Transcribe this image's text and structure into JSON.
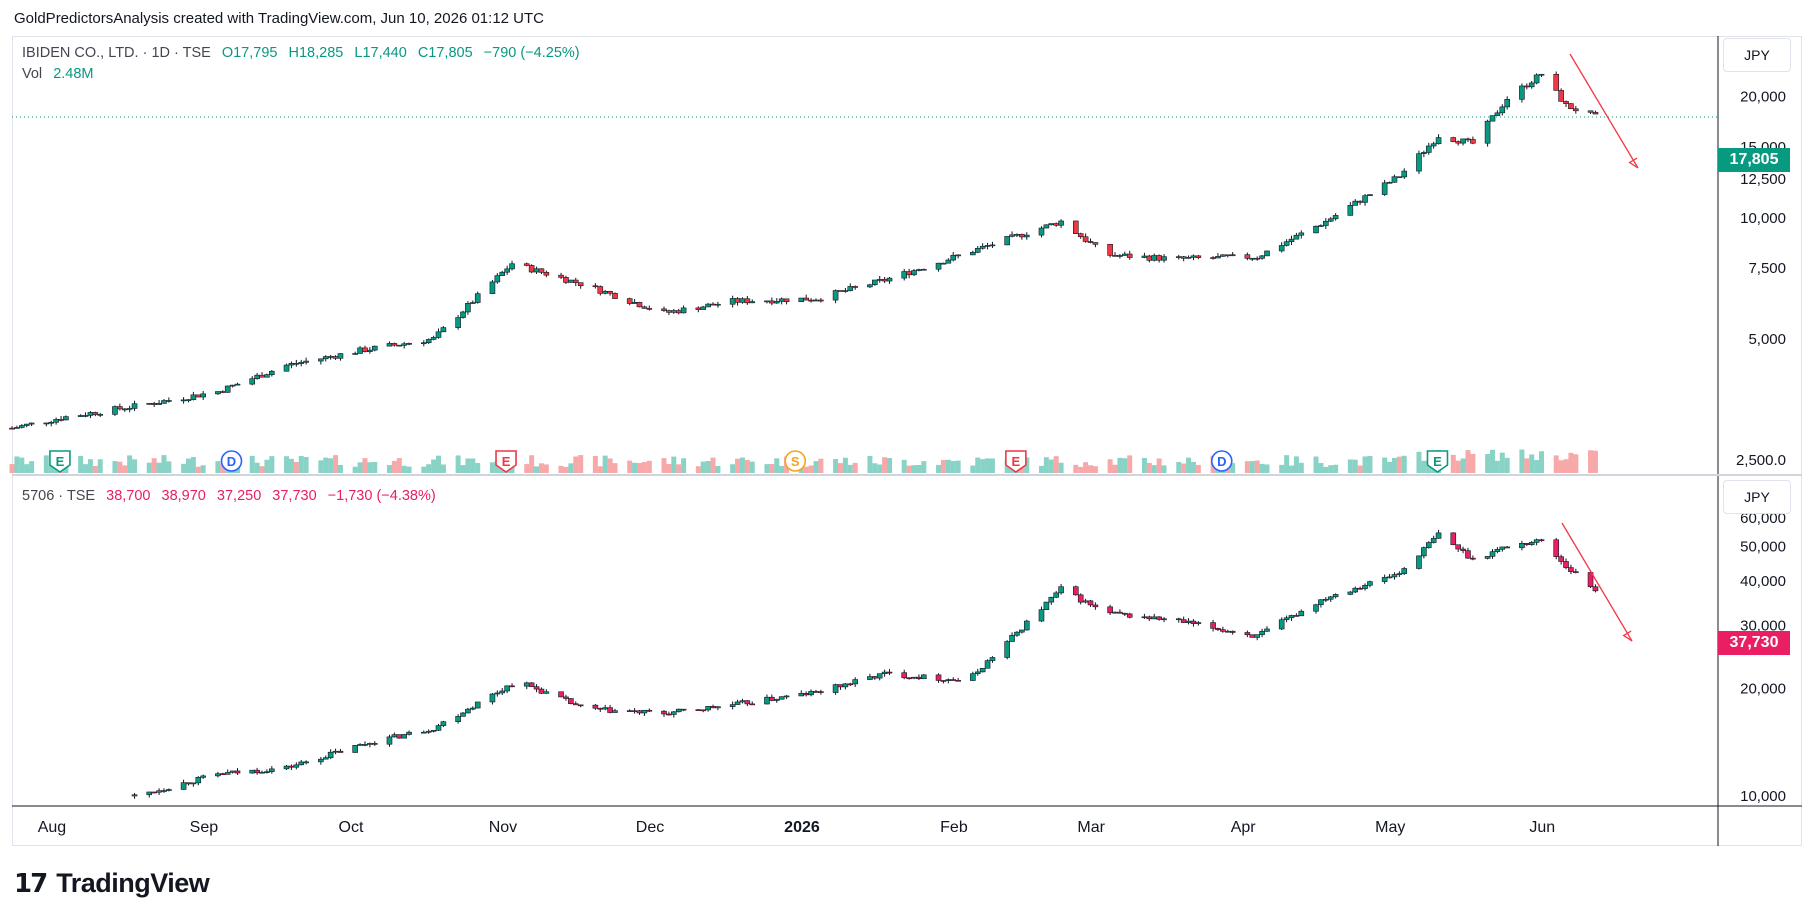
{
  "caption": "GoldPredictorsAnalysis created with TradingView.com, Jun 10, 2026 01:12 UTC",
  "brand": "TradingView",
  "colors": {
    "up": "#089981",
    "down": "#f23645",
    "pane2_up": "#089981",
    "pane2_down": "#e91e63",
    "arrow": "#f23645"
  },
  "pane1": {
    "symbol": "IBIDEN CO., LTD. · 1D · TSE",
    "ohlc": {
      "open": "O17,795",
      "high": "H18,285",
      "low": "L17,440",
      "close": "C17,805",
      "change": "−790 (−4.25%)"
    },
    "volume_label": "Vol",
    "volume_value": "2.48M",
    "currency": "JPY",
    "last_price": "17,805",
    "y_ticks": [
      "2,500.0",
      "5,000",
      "7,500",
      "10,000",
      "12,500",
      "15,000",
      "20,000"
    ],
    "events": [
      {
        "icon": "E",
        "kind": "earnings-up"
      },
      {
        "icon": "D",
        "kind": "dividend"
      },
      {
        "icon": "E",
        "kind": "earnings-down"
      },
      {
        "icon": "S",
        "kind": "split"
      },
      {
        "icon": "E",
        "kind": "earnings-down"
      },
      {
        "icon": "D",
        "kind": "dividend"
      },
      {
        "icon": "E",
        "kind": "earnings-up"
      }
    ]
  },
  "pane2": {
    "symbol": "5706 · TSE",
    "ohlc": {
      "open": "38,700",
      "high": "38,970",
      "low": "37,250",
      "close": "37,730",
      "change": "−1,730 (−4.38%)"
    },
    "currency": "JPY",
    "last_price": "37,730",
    "y_ticks": [
      "10,000",
      "20,000",
      "30,000",
      "40,000",
      "50,000",
      "60,000"
    ]
  },
  "x_axis": [
    "Aug",
    "Sep",
    "Oct",
    "Nov",
    "Dec",
    "2026",
    "Feb",
    "Mar",
    "Apr",
    "May",
    "Jun"
  ],
  "chart_data": [
    {
      "type": "line",
      "title": "IBIDEN CO., LTD. · 1D · TSE",
      "x": [
        "2025-07-21",
        "2025-08-01",
        "2025-08-15",
        "2025-09-01",
        "2025-09-15",
        "2025-10-01",
        "2025-10-15",
        "2025-10-31",
        "2025-11-15",
        "2025-12-01",
        "2025-12-15",
        "2026-01-01",
        "2026-01-15",
        "2026-02-01",
        "2026-02-20",
        "2026-03-01",
        "2026-03-15",
        "2026-04-01",
        "2026-04-15",
        "2026-04-30",
        "2026-05-08",
        "2026-05-15",
        "2026-05-22",
        "2026-05-29",
        "2026-06-03",
        "2026-06-09"
      ],
      "series": [
        {
          "values": [
            3000,
            3200,
            3400,
            3700,
            4300,
            4700,
            5000,
            7700,
            6800,
            5800,
            6200,
            6300,
            7000,
            8200,
            9800,
            8100,
            7900,
            8000,
            9800,
            12700,
            16000,
            15300,
            19800,
            22800,
            19000,
            17805
          ]
        }
      ],
      "ylim": [
        2500,
        22000
      ],
      "y_scale": "log",
      "last": 17805
    },
    {
      "type": "line",
      "title": "5706 · TSE",
      "x": [
        "2025-08-15",
        "2025-09-01",
        "2025-09-15",
        "2025-10-01",
        "2025-10-15",
        "2025-11-01",
        "2025-11-15",
        "2025-12-01",
        "2025-12-15",
        "2026-01-01",
        "2026-01-15",
        "2026-02-01",
        "2026-02-20",
        "2026-03-01",
        "2026-03-15",
        "2026-04-01",
        "2026-04-15",
        "2026-04-30",
        "2026-05-08",
        "2026-05-15",
        "2026-05-22",
        "2026-05-29",
        "2026-06-03",
        "2026-06-09"
      ],
      "series": [
        {
          "values": [
            10000,
            11500,
            12000,
            14000,
            15500,
            21000,
            17500,
            17000,
            18000,
            19500,
            22000,
            21000,
            38000,
            32500,
            31000,
            28000,
            36000,
            42000,
            54000,
            46000,
            50000,
            52000,
            44000,
            37730
          ]
        }
      ],
      "ylim": [
        10000,
        60000
      ],
      "y_scale": "log",
      "last": 37730
    }
  ]
}
